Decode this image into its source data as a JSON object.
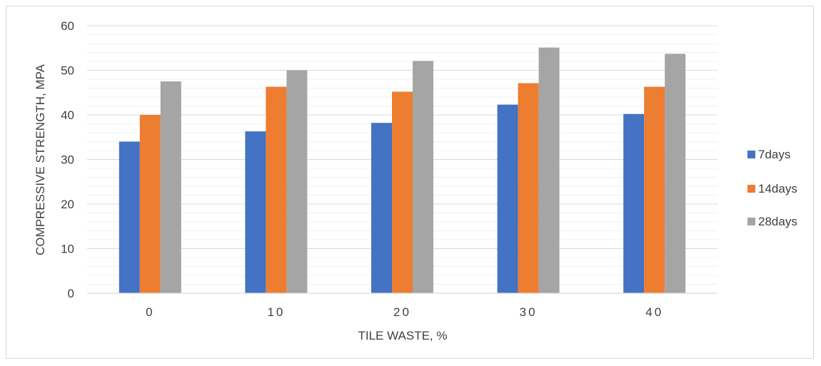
{
  "chart_data": {
    "type": "bar",
    "title": "",
    "xlabel": "TILE WASTE, %",
    "ylabel": "COMPRESSIVE STRENGTH, MPA",
    "categories": [
      "0",
      "10",
      "20",
      "30",
      "40"
    ],
    "series": [
      {
        "name": "7days",
        "values": [
          34,
          36.3,
          38.2,
          42.3,
          40.2
        ],
        "color": "#4472C4"
      },
      {
        "name": "14days",
        "values": [
          40,
          46.3,
          45.2,
          47.1,
          46.3
        ],
        "color": "#ED7D31"
      },
      {
        "name": "28days",
        "values": [
          47.5,
          50,
          52.1,
          55.1,
          53.7
        ],
        "color": "#A5A5A5"
      }
    ],
    "ylim": [
      0,
      60
    ],
    "yticks": [
      "0",
      "10",
      "20",
      "30",
      "40",
      "50",
      "60"
    ],
    "grid": true,
    "legend": "right"
  }
}
